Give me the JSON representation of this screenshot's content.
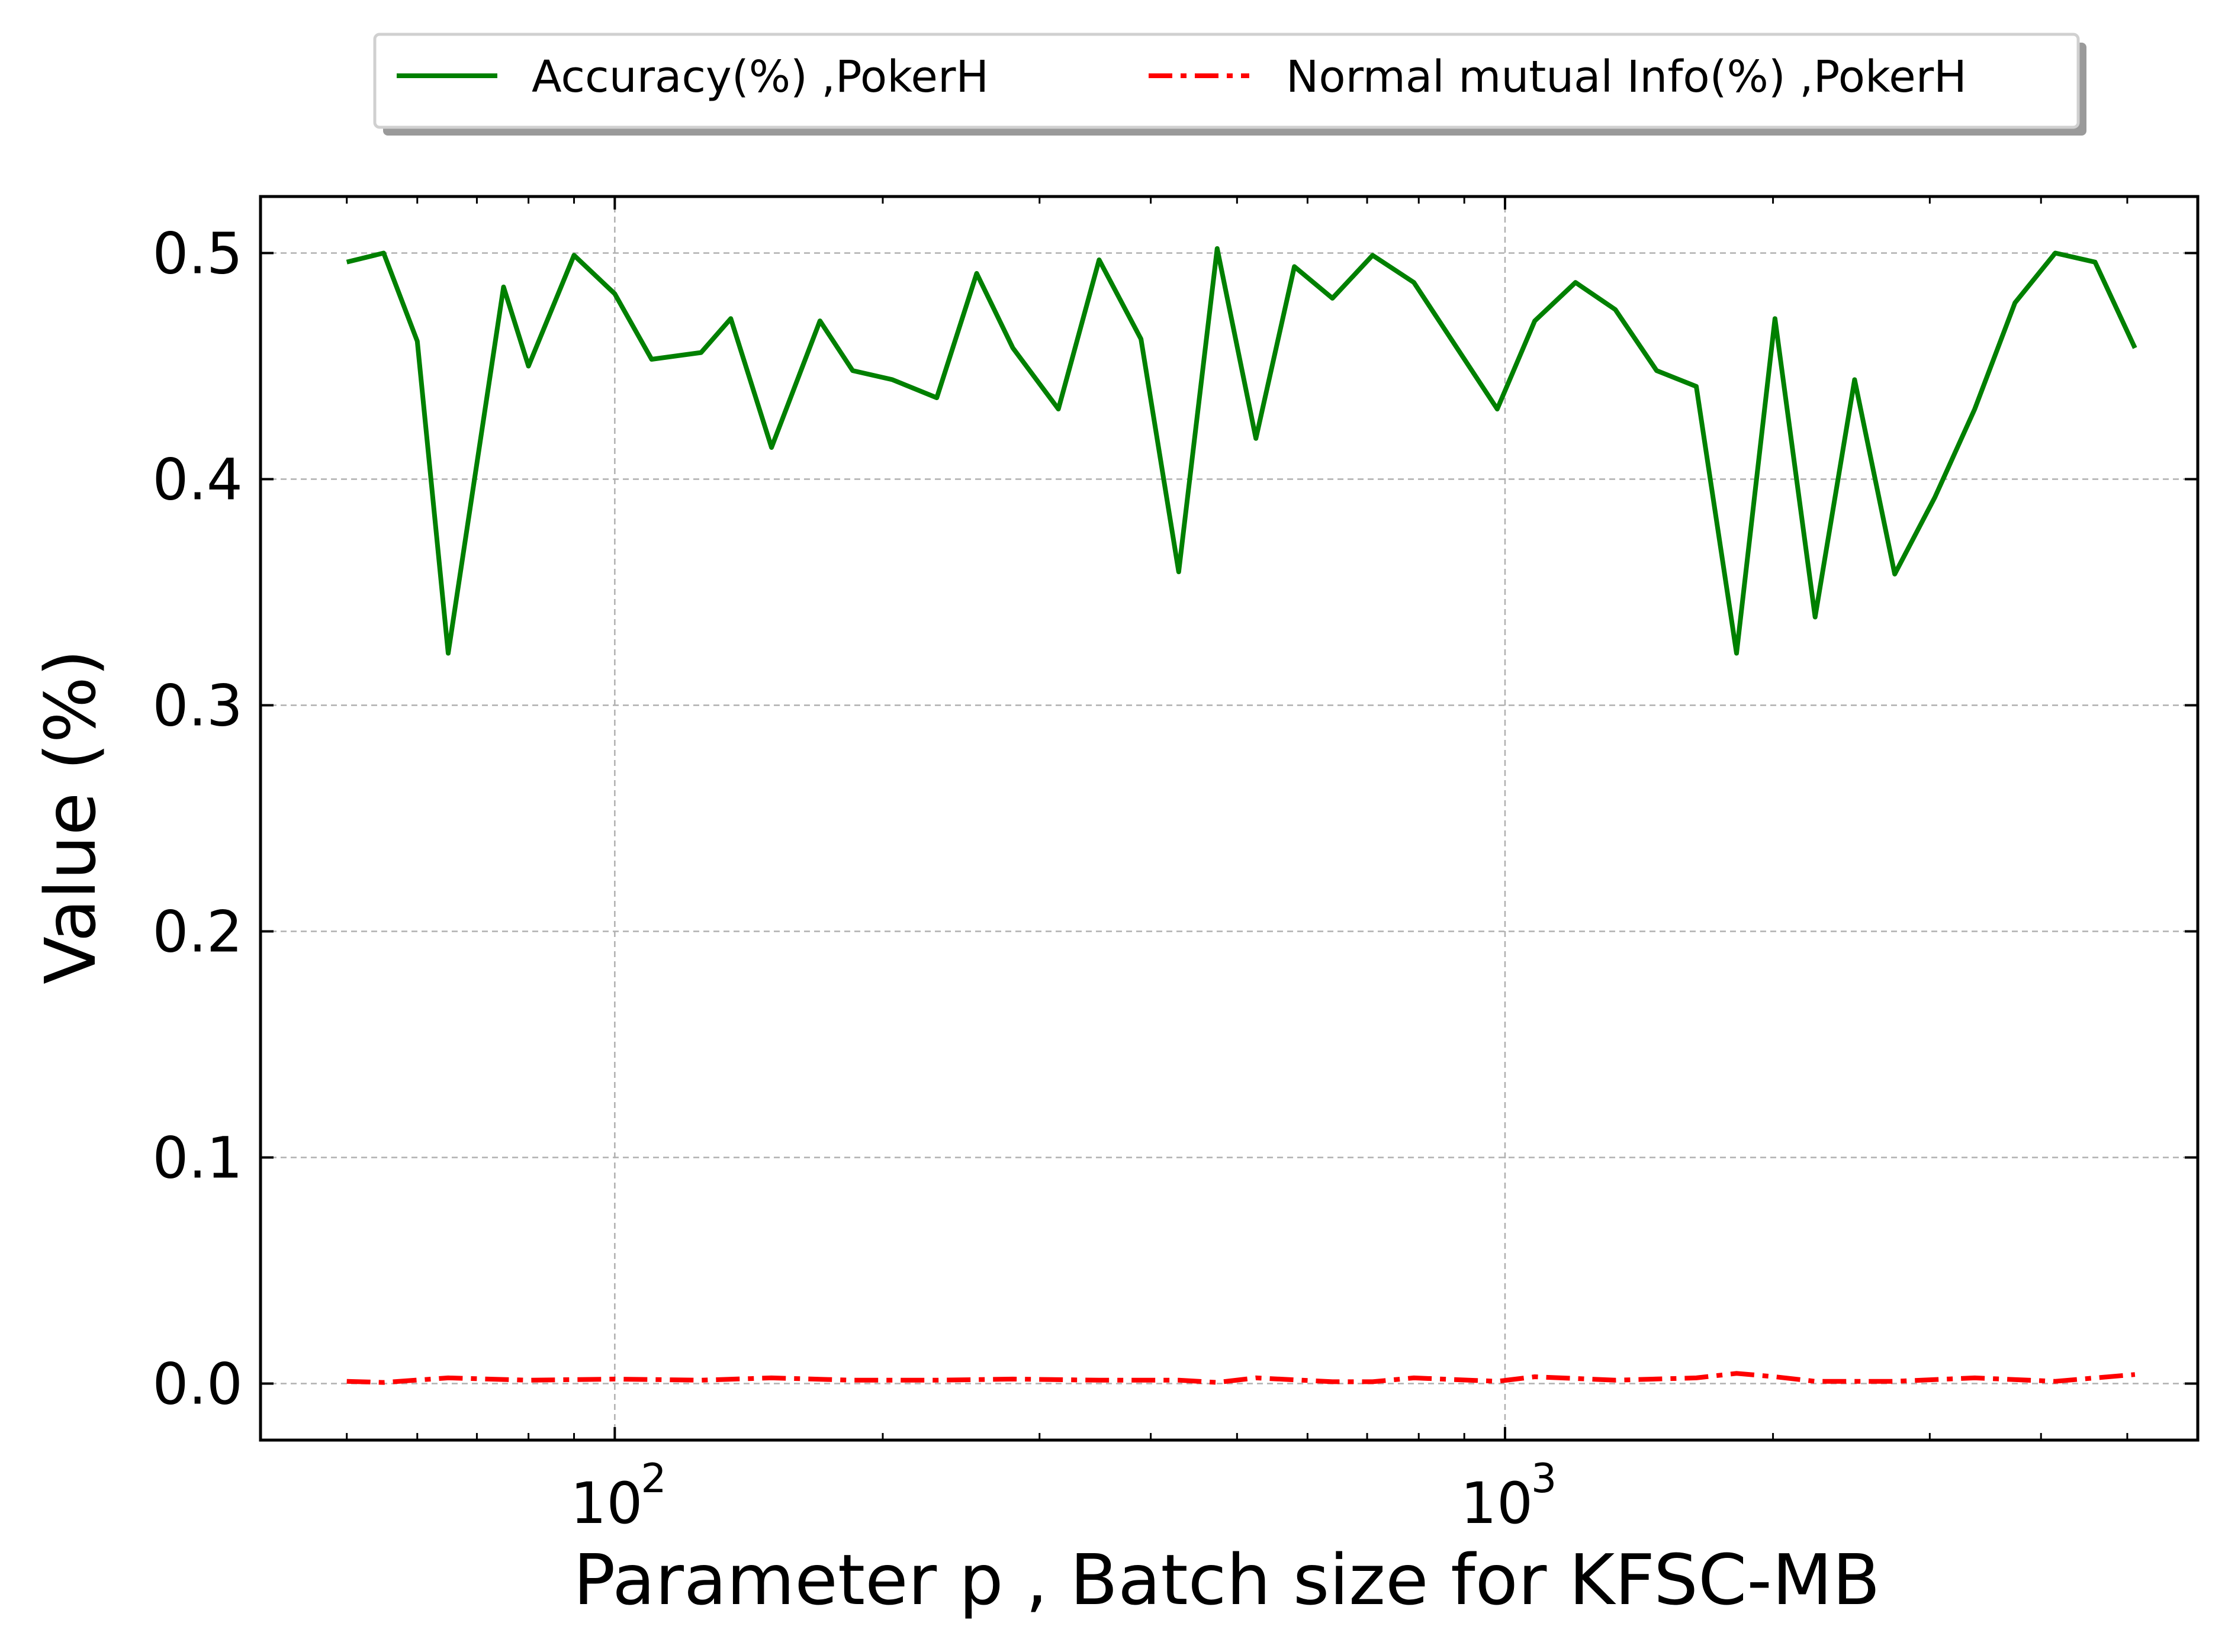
{
  "chart_data": {
    "type": "line",
    "xlabel": "Parameter p , Batch size for KFSC-MB",
    "ylabel": "Value (%)",
    "xscale": "log",
    "xlim": [
      40,
      6000
    ],
    "ylim": [
      -0.025,
      0.525
    ],
    "grid": true,
    "legend_placement": "top-center, outside plot",
    "x_major_ticks": [
      100,
      1000
    ],
    "x_major_tick_labels": [
      "10",
      "10"
    ],
    "x_major_tick_exponents": [
      "2",
      "3"
    ],
    "y_ticks": [
      0.0,
      0.1,
      0.2,
      0.3,
      0.4,
      0.5
    ],
    "y_tick_labels": [
      "0.0",
      "0.1",
      "0.2",
      "0.3",
      "0.4",
      "0.5"
    ],
    "series": [
      {
        "name": "Accuracy(%) ,PokerH",
        "color": "#008000",
        "style": "solid",
        "points": [
          [
            50,
            0.496
          ],
          [
            55,
            0.5
          ],
          [
            60,
            0.461
          ],
          [
            65,
            0.323
          ],
          [
            75,
            0.485
          ],
          [
            80,
            0.45
          ],
          [
            90,
            0.499
          ],
          [
            100,
            0.482
          ],
          [
            110,
            0.453
          ],
          [
            125,
            0.456
          ],
          [
            135,
            0.471
          ],
          [
            150,
            0.414
          ],
          [
            170,
            0.47
          ],
          [
            185,
            0.448
          ],
          [
            205,
            0.444
          ],
          [
            230,
            0.436
          ],
          [
            255,
            0.491
          ],
          [
            280,
            0.458
          ],
          [
            315,
            0.431
          ],
          [
            350,
            0.497
          ],
          [
            390,
            0.462
          ],
          [
            430,
            0.359
          ],
          [
            475,
            0.502
          ],
          [
            525,
            0.418
          ],
          [
            580,
            0.494
          ],
          [
            640,
            0.48
          ],
          [
            710,
            0.499
          ],
          [
            790,
            0.487
          ],
          [
            980,
            0.431
          ],
          [
            1080,
            0.47
          ],
          [
            1200,
            0.487
          ],
          [
            1330,
            0.475
          ],
          [
            1480,
            0.448
          ],
          [
            1640,
            0.441
          ],
          [
            1820,
            0.323
          ],
          [
            2010,
            0.471
          ],
          [
            2230,
            0.339
          ],
          [
            2470,
            0.444
          ],
          [
            2740,
            0.358
          ],
          [
            3040,
            0.392
          ],
          [
            3370,
            0.431
          ],
          [
            3740,
            0.478
          ],
          [
            4150,
            0.5
          ],
          [
            4600,
            0.496
          ],
          [
            5100,
            0.458
          ]
        ]
      },
      {
        "name": "Normal mutual Info(%) ,PokerH",
        "color": "#ff0000",
        "style": "dashdot",
        "points": [
          [
            50,
            0.001
          ],
          [
            55,
            0.0005
          ],
          [
            65,
            0.0025
          ],
          [
            80,
            0.0015
          ],
          [
            100,
            0.002
          ],
          [
            125,
            0.0015
          ],
          [
            150,
            0.0025
          ],
          [
            185,
            0.0015
          ],
          [
            230,
            0.0015
          ],
          [
            280,
            0.002
          ],
          [
            350,
            0.0015
          ],
          [
            430,
            0.0015
          ],
          [
            475,
            0.0005
          ],
          [
            525,
            0.0025
          ],
          [
            640,
            0.0008
          ],
          [
            710,
            0.0008
          ],
          [
            790,
            0.0025
          ],
          [
            980,
            0.001
          ],
          [
            1080,
            0.003
          ],
          [
            1330,
            0.0015
          ],
          [
            1640,
            0.0025
          ],
          [
            1820,
            0.0045
          ],
          [
            2010,
            0.003
          ],
          [
            2230,
            0.001
          ],
          [
            2740,
            0.001
          ],
          [
            3370,
            0.0025
          ],
          [
            4150,
            0.001
          ],
          [
            5100,
            0.004
          ]
        ]
      }
    ]
  }
}
